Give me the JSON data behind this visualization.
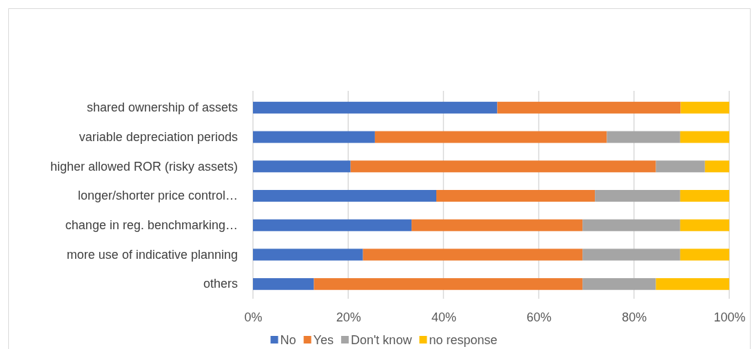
{
  "chart_data": {
    "type": "bar",
    "orientation": "horizontal",
    "stacked": true,
    "categories": [
      "shared ownership of assets",
      "variable depreciation periods",
      "higher allowed ROR (risky assets)",
      "longer/shorter price control…",
      "change in reg. benchmarking…",
      "more use of indicative planning",
      "others"
    ],
    "series": [
      {
        "name": "No",
        "color": "#4472c4",
        "values": [
          51.3,
          25.6,
          20.5,
          38.5,
          33.3,
          23.1,
          12.8
        ]
      },
      {
        "name": "Yes",
        "color": "#ed7d31",
        "values": [
          38.5,
          48.7,
          64.1,
          33.3,
          35.9,
          46.1,
          56.4
        ]
      },
      {
        "name": "Don't know",
        "color": "#a5a5a5",
        "values": [
          0,
          15.4,
          10.3,
          17.9,
          20.5,
          20.5,
          15.4
        ]
      },
      {
        "name": "no response",
        "color": "#ffc000",
        "values": [
          10.2,
          10.3,
          5.1,
          10.3,
          10.3,
          10.3,
          15.4
        ]
      }
    ],
    "xlim": [
      0,
      100
    ],
    "xticks": [
      {
        "value": 0,
        "label": "0%"
      },
      {
        "value": 20,
        "label": "20%"
      },
      {
        "value": 40,
        "label": "40%"
      },
      {
        "value": 60,
        "label": "60%"
      },
      {
        "value": 80,
        "label": "80%"
      },
      {
        "value": 100,
        "label": "100%"
      }
    ],
    "grid": "x",
    "legend": "bottom"
  }
}
